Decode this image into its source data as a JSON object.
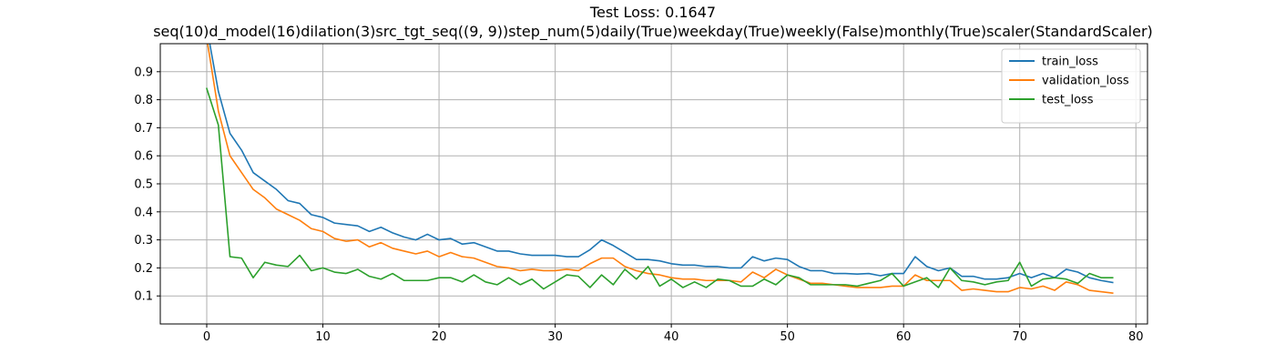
{
  "chart_data": {
    "type": "line",
    "title": "Test Loss: 0.1647",
    "subtitle": "seq(10)d_model(16)dilation(3)src_tgt_seq((9, 9))step_num(5)daily(True)weekday(True)weekly(False)monthly(True)scaler(StandardScaler)",
    "xlabel": "",
    "ylabel": "",
    "xlim": [
      -4,
      81
    ],
    "ylim": [
      0.0,
      1.0
    ],
    "xticks": [
      0,
      10,
      20,
      30,
      40,
      50,
      60,
      70,
      80
    ],
    "yticks": [
      0.1,
      0.2,
      0.3,
      0.4,
      0.5,
      0.6,
      0.7,
      0.8,
      0.9
    ],
    "grid": true,
    "legend_position": "top-right",
    "series": [
      {
        "name": "train_loss",
        "color": "#1f77b4",
        "values": [
          1.06,
          0.83,
          0.68,
          0.62,
          0.54,
          0.51,
          0.48,
          0.44,
          0.43,
          0.39,
          0.38,
          0.36,
          0.355,
          0.35,
          0.33,
          0.345,
          0.325,
          0.31,
          0.3,
          0.32,
          0.3,
          0.305,
          0.285,
          0.29,
          0.275,
          0.26,
          0.26,
          0.25,
          0.245,
          0.245,
          0.245,
          0.24,
          0.24,
          0.265,
          0.3,
          0.28,
          0.255,
          0.23,
          0.23,
          0.225,
          0.215,
          0.21,
          0.21,
          0.205,
          0.205,
          0.2,
          0.2,
          0.24,
          0.225,
          0.235,
          0.23,
          0.205,
          0.19,
          0.19,
          0.18,
          0.18,
          0.178,
          0.18,
          0.172,
          0.18,
          0.18,
          0.24,
          0.205,
          0.19,
          0.2,
          0.17,
          0.17,
          0.16,
          0.16,
          0.165,
          0.18,
          0.165,
          0.18,
          0.165,
          0.195,
          0.185,
          0.165,
          0.155,
          0.148
        ]
      },
      {
        "name": "validation_loss",
        "color": "#ff7f0e",
        "values": [
          1.02,
          0.76,
          0.6,
          0.54,
          0.48,
          0.45,
          0.41,
          0.39,
          0.37,
          0.34,
          0.33,
          0.305,
          0.295,
          0.3,
          0.275,
          0.29,
          0.27,
          0.26,
          0.25,
          0.26,
          0.24,
          0.255,
          0.24,
          0.235,
          0.22,
          0.205,
          0.2,
          0.19,
          0.195,
          0.19,
          0.19,
          0.195,
          0.19,
          0.215,
          0.235,
          0.235,
          0.205,
          0.19,
          0.18,
          0.175,
          0.165,
          0.16,
          0.16,
          0.155,
          0.155,
          0.155,
          0.15,
          0.185,
          0.165,
          0.195,
          0.175,
          0.16,
          0.145,
          0.145,
          0.14,
          0.135,
          0.13,
          0.13,
          0.13,
          0.135,
          0.135,
          0.175,
          0.155,
          0.155,
          0.155,
          0.12,
          0.125,
          0.12,
          0.115,
          0.115,
          0.13,
          0.125,
          0.135,
          0.12,
          0.15,
          0.14,
          0.12,
          0.115,
          0.11
        ]
      },
      {
        "name": "test_loss",
        "color": "#2ca02c",
        "values": [
          0.84,
          0.71,
          0.24,
          0.235,
          0.165,
          0.22,
          0.21,
          0.205,
          0.245,
          0.19,
          0.2,
          0.185,
          0.18,
          0.195,
          0.17,
          0.16,
          0.18,
          0.155,
          0.155,
          0.155,
          0.165,
          0.165,
          0.15,
          0.175,
          0.15,
          0.14,
          0.165,
          0.14,
          0.16,
          0.125,
          0.15,
          0.175,
          0.17,
          0.13,
          0.175,
          0.14,
          0.195,
          0.16,
          0.205,
          0.135,
          0.16,
          0.13,
          0.15,
          0.13,
          0.16,
          0.155,
          0.135,
          0.135,
          0.16,
          0.14,
          0.175,
          0.165,
          0.14,
          0.14,
          0.14,
          0.14,
          0.135,
          0.145,
          0.155,
          0.18,
          0.135,
          0.15,
          0.165,
          0.13,
          0.2,
          0.155,
          0.15,
          0.14,
          0.15,
          0.155,
          0.22,
          0.135,
          0.16,
          0.165,
          0.16,
          0.145,
          0.18,
          0.165,
          0.165
        ]
      }
    ]
  }
}
